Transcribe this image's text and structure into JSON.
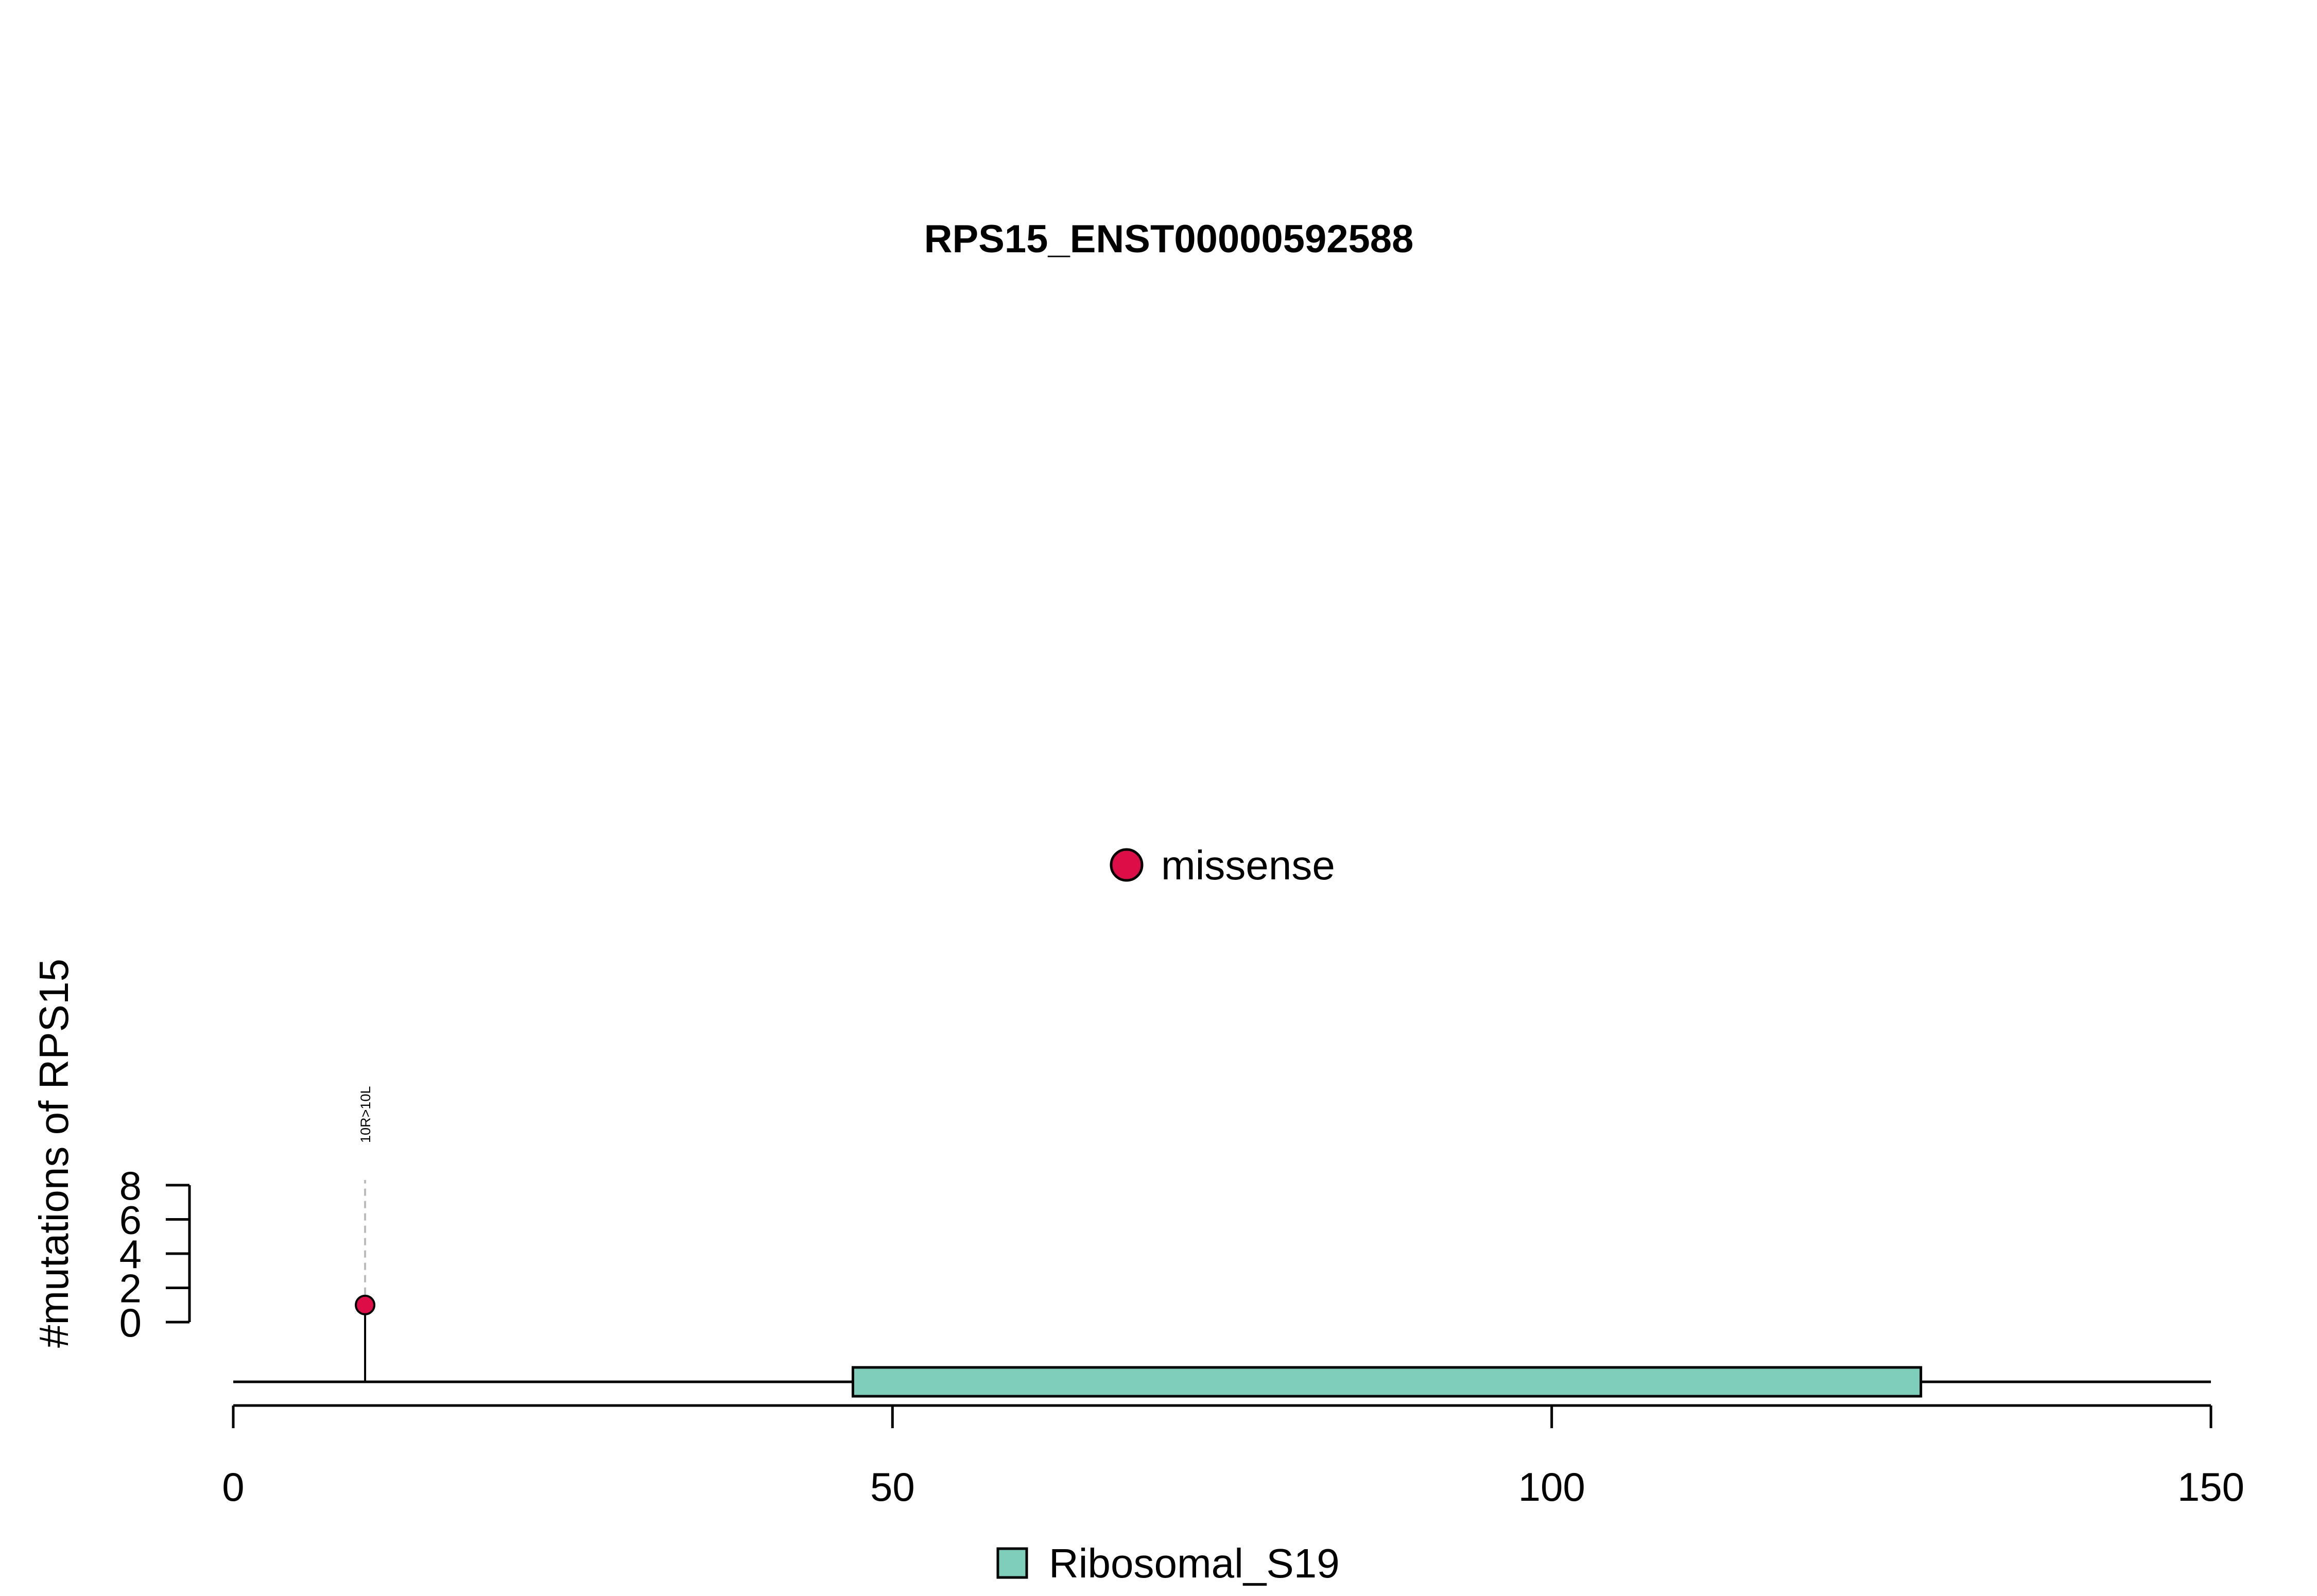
{
  "chart_data": {
    "type": "lollipop",
    "title": "RPS15_ENST00000592588",
    "ylabel": "#mutations of RPS15",
    "xlim": [
      0,
      150
    ],
    "x_ticks": [
      0,
      50,
      100,
      150
    ],
    "ylim": [
      0,
      8
    ],
    "y_ticks": [
      0,
      2,
      4,
      6,
      8
    ],
    "mutations": [
      {
        "position": 10,
        "count": 1,
        "label": "10R>10L",
        "type": "missense"
      }
    ],
    "domains": [
      {
        "name": "Ribosomal_S19",
        "start": 47,
        "end": 128,
        "color": "#7fcdbb"
      }
    ],
    "mutation_legend": [
      {
        "type": "missense",
        "color": "#dc0d47"
      }
    ],
    "domain_legend": [
      {
        "name": "Ribosomal_S19",
        "color": "#7fcdbb"
      }
    ]
  }
}
